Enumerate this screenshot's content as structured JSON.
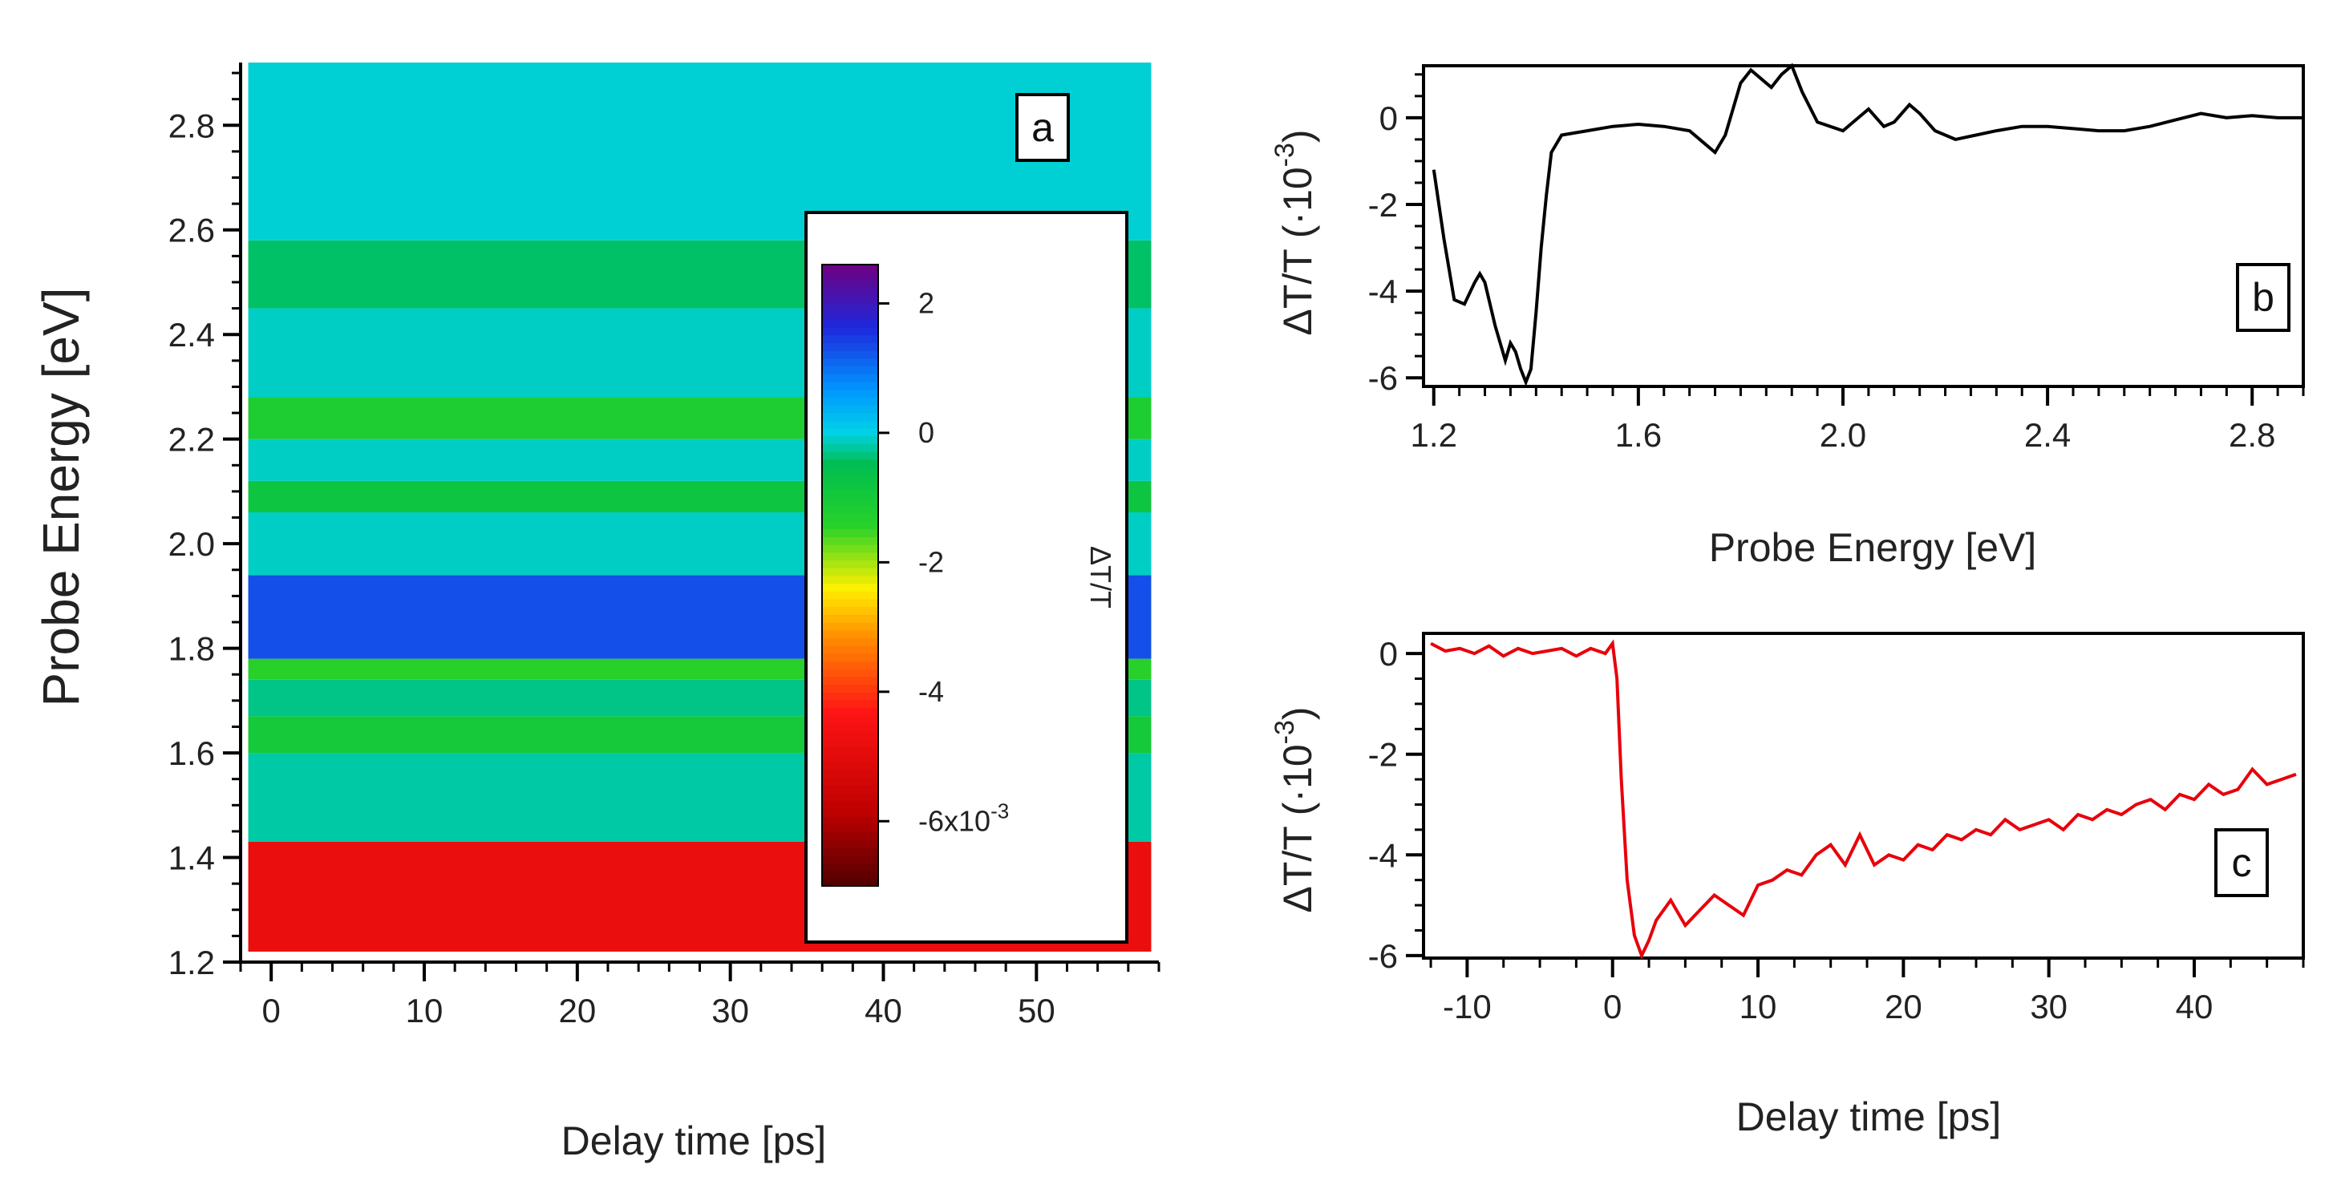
{
  "chart_data": [
    {
      "panel": "a",
      "type": "heatmap",
      "xlabel": "Delay time [ps]",
      "ylabel": "Probe Energy [eV]",
      "xlim": [
        -2,
        58
      ],
      "ylim": [
        1.2,
        2.92
      ],
      "x_ticks": [
        0,
        10,
        20,
        30,
        40,
        50
      ],
      "y_ticks": [
        1.2,
        1.4,
        1.6,
        1.8,
        2.0,
        2.2,
        2.4,
        2.6,
        2.8
      ],
      "y_tick_labels": [
        "1.2",
        "1.4",
        "1.6",
        "1.8",
        "2.0",
        "2.2",
        "2.4",
        "2.6",
        "2.8"
      ],
      "bands": [
        {
          "y0": 1.22,
          "y1": 1.43,
          "value": -4.8
        },
        {
          "y0": 1.43,
          "y1": 1.6,
          "value": -0.2
        },
        {
          "y0": 1.6,
          "y1": 1.67,
          "value": -1.0
        },
        {
          "y0": 1.67,
          "y1": 1.74,
          "value": -0.3
        },
        {
          "y0": 1.74,
          "y1": 1.78,
          "value": -1.4
        },
        {
          "y0": 1.78,
          "y1": 1.94,
          "value": 1.3
        },
        {
          "y0": 1.94,
          "y1": 2.06,
          "value": -0.1
        },
        {
          "y0": 2.06,
          "y1": 2.12,
          "value": -0.8
        },
        {
          "y0": 2.12,
          "y1": 2.2,
          "value": -0.1
        },
        {
          "y0": 2.2,
          "y1": 2.28,
          "value": -1.2
        },
        {
          "y0": 2.28,
          "y1": 2.45,
          "value": -0.1
        },
        {
          "y0": 2.45,
          "y1": 2.58,
          "value": -0.4
        },
        {
          "y0": 2.58,
          "y1": 2.92,
          "value": -0.05
        }
      ],
      "colorbar": {
        "label": "ΔT/T",
        "range": [
          -7,
          2.6
        ],
        "ticks": [
          2,
          0,
          -2,
          -4,
          -6
        ],
        "tick_labels": [
          "2",
          "0",
          "-2",
          "-4",
          "-6x10"
        ],
        "exponent": "-3"
      }
    },
    {
      "panel": "b",
      "type": "line",
      "color": "#000000",
      "xlabel": "Probe Energy [eV]",
      "ylabel": "ΔT/T (·10",
      "ylabel_exponent": "-3",
      "ylabel_close": ")",
      "xlim": [
        1.18,
        2.9
      ],
      "ylim": [
        -6.2,
        1.2
      ],
      "x_ticks": [
        1.2,
        1.6,
        2.0,
        2.4,
        2.8
      ],
      "x_tick_labels": [
        "1.2",
        "1.6",
        "2.0",
        "2.4",
        "2.8"
      ],
      "y_ticks": [
        0,
        -2,
        -4,
        -6
      ],
      "x": [
        1.2,
        1.22,
        1.24,
        1.26,
        1.28,
        1.29,
        1.3,
        1.32,
        1.34,
        1.35,
        1.36,
        1.37,
        1.38,
        1.39,
        1.4,
        1.41,
        1.42,
        1.43,
        1.45,
        1.5,
        1.55,
        1.6,
        1.65,
        1.7,
        1.73,
        1.75,
        1.77,
        1.8,
        1.82,
        1.84,
        1.86,
        1.88,
        1.9,
        1.92,
        1.95,
        2.0,
        2.03,
        2.05,
        2.08,
        2.1,
        2.13,
        2.15,
        2.18,
        2.22,
        2.26,
        2.3,
        2.35,
        2.4,
        2.45,
        2.5,
        2.55,
        2.6,
        2.65,
        2.7,
        2.75,
        2.8,
        2.85,
        2.9
      ],
      "y": [
        -1.2,
        -2.8,
        -4.2,
        -4.3,
        -3.8,
        -3.6,
        -3.8,
        -4.8,
        -5.6,
        -5.2,
        -5.4,
        -5.8,
        -6.1,
        -5.8,
        -4.5,
        -3.0,
        -1.8,
        -0.8,
        -0.4,
        -0.3,
        -0.2,
        -0.15,
        -0.2,
        -0.3,
        -0.6,
        -0.8,
        -0.4,
        0.8,
        1.1,
        0.9,
        0.7,
        1.0,
        1.2,
        0.6,
        -0.1,
        -0.3,
        0.0,
        0.2,
        -0.2,
        -0.1,
        0.3,
        0.1,
        -0.3,
        -0.5,
        -0.4,
        -0.3,
        -0.2,
        -0.2,
        -0.25,
        -0.3,
        -0.3,
        -0.2,
        -0.05,
        0.1,
        0.0,
        0.05,
        0.0,
        0.0
      ]
    },
    {
      "panel": "c",
      "type": "line",
      "color": "#e8000b",
      "xlabel": "Delay time [ps]",
      "ylabel": "ΔT/T (·10",
      "ylabel_exponent": "-3",
      "ylabel_close": ")",
      "xlim": [
        -13,
        47.5
      ],
      "ylim": [
        -6.05,
        0.4
      ],
      "x_ticks": [
        -10,
        0,
        10,
        20,
        30,
        40
      ],
      "y_ticks": [
        0,
        -2,
        -4,
        -6
      ],
      "x": [
        -12.5,
        -11.5,
        -10.5,
        -9.5,
        -8.5,
        -7.5,
        -6.5,
        -5.5,
        -4.5,
        -3.5,
        -2.5,
        -1.5,
        -0.5,
        0.0,
        0.3,
        0.6,
        1.0,
        1.5,
        2.0,
        2.5,
        3.0,
        4.0,
        5.0,
        6.0,
        7.0,
        8.0,
        9.0,
        10.0,
        11.0,
        12.0,
        13.0,
        14.0,
        15.0,
        16.0,
        17.0,
        18.0,
        19.0,
        20.0,
        21.0,
        22.0,
        23.0,
        24.0,
        25.0,
        26.0,
        27.0,
        28.0,
        29.0,
        30.0,
        31.0,
        32.0,
        33.0,
        34.0,
        35.0,
        36.0,
        37.0,
        38.0,
        39.0,
        40.0,
        41.0,
        42.0,
        43.0,
        44.0,
        45.0,
        46.0,
        47.0
      ],
      "y": [
        0.2,
        0.05,
        0.1,
        0.0,
        0.15,
        -0.05,
        0.1,
        0.0,
        0.05,
        0.1,
        -0.05,
        0.1,
        0.0,
        0.2,
        -0.5,
        -2.5,
        -4.5,
        -5.6,
        -6.0,
        -5.7,
        -5.3,
        -4.9,
        -5.4,
        -5.1,
        -4.8,
        -5.0,
        -5.2,
        -4.6,
        -4.5,
        -4.3,
        -4.4,
        -4.0,
        -3.8,
        -4.2,
        -3.6,
        -4.2,
        -4.0,
        -4.1,
        -3.8,
        -3.9,
        -3.6,
        -3.7,
        -3.5,
        -3.6,
        -3.3,
        -3.5,
        -3.4,
        -3.3,
        -3.5,
        -3.2,
        -3.3,
        -3.1,
        -3.2,
        -3.0,
        -2.9,
        -3.1,
        -2.8,
        -2.9,
        -2.6,
        -2.8,
        -2.7,
        -2.3,
        -2.6,
        -2.5,
        -2.4
      ]
    }
  ],
  "labels": {
    "a": "a",
    "b": "b",
    "c": "c"
  }
}
